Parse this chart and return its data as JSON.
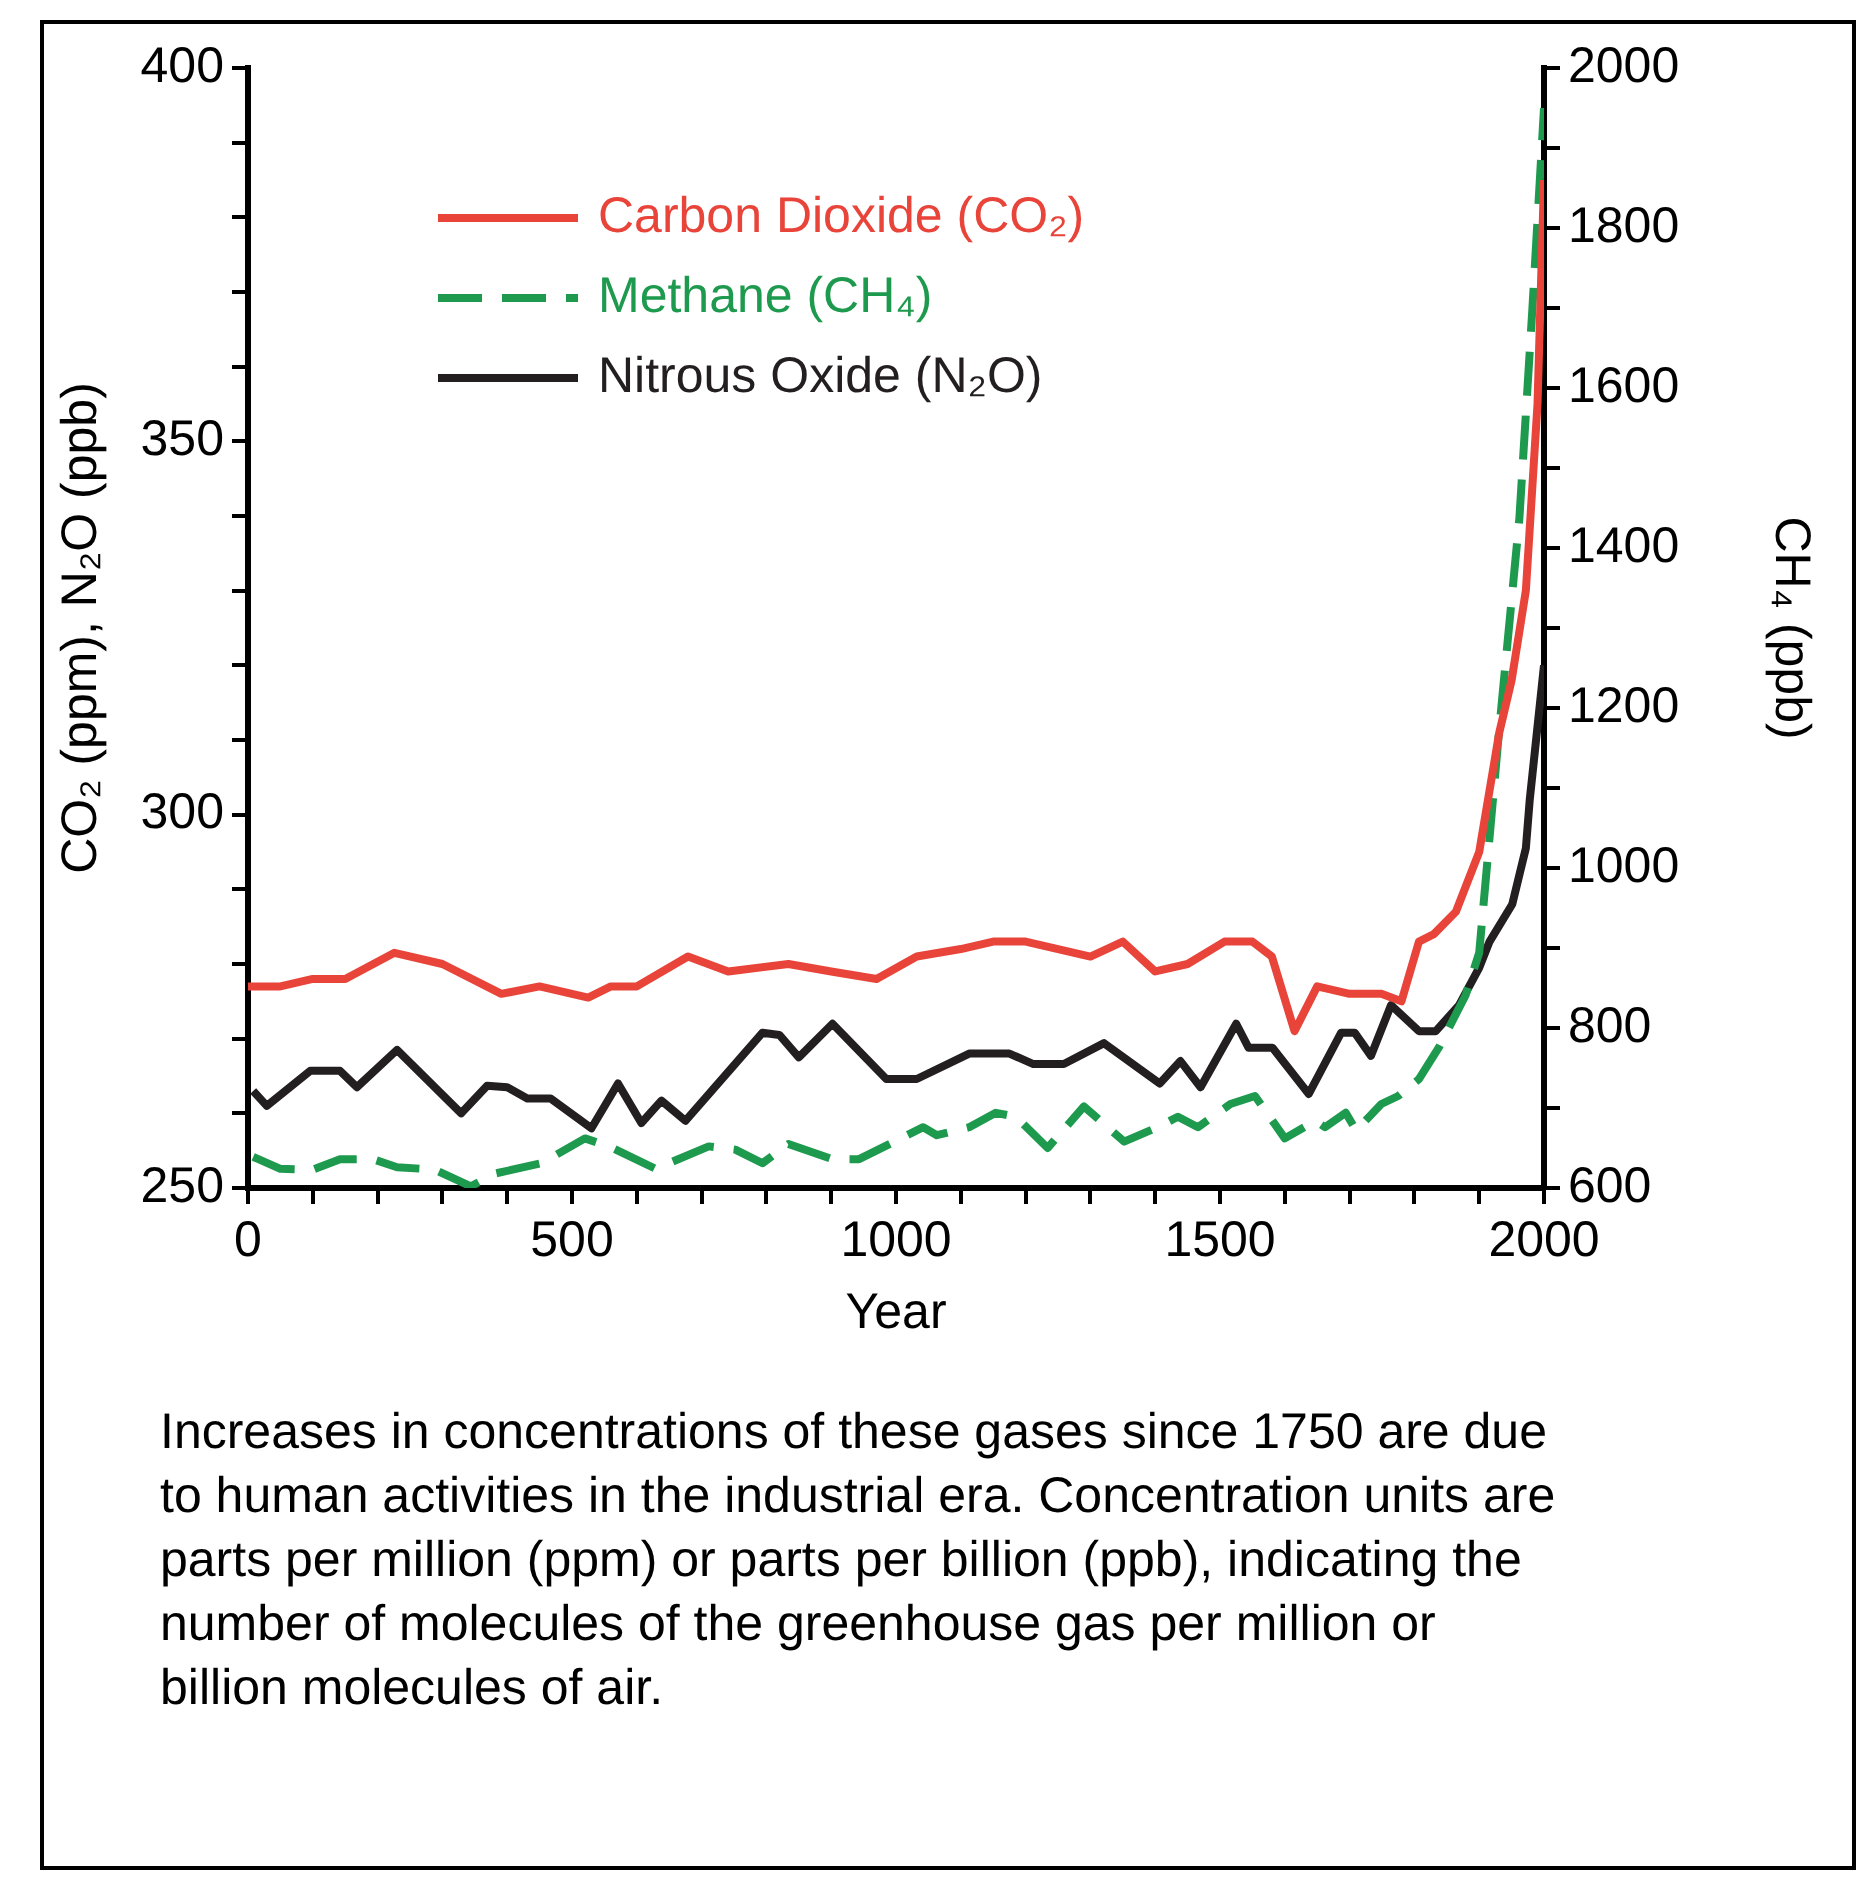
{
  "chart_data": {
    "type": "line",
    "xlabel": "Year",
    "ylabel": "CO₂ (ppm), N₂O (ppb)",
    "y2label": "CH₄ (ppb)",
    "xlim": [
      0,
      2000
    ],
    "xticks": [
      0,
      {
        "value": 100,
        "label": null
      },
      {
        "value": 200,
        "label": null
      },
      {
        "value": 300,
        "label": null
      },
      {
        "value": 400,
        "label": null
      },
      500,
      {
        "value": 600,
        "label": null
      },
      {
        "value": 700,
        "label": null
      },
      {
        "value": 800,
        "label": null
      },
      {
        "value": 900,
        "label": null
      },
      1000,
      {
        "value": 1100,
        "label": null
      },
      {
        "value": 1200,
        "label": null
      },
      {
        "value": 1300,
        "label": null
      },
      {
        "value": 1400,
        "label": null
      },
      1500,
      {
        "value": 1600,
        "label": null
      },
      {
        "value": 1700,
        "label": null
      },
      {
        "value": 1800,
        "label": null
      },
      {
        "value": 1900,
        "label": null
      },
      2000
    ],
    "ylim": [
      250,
      400
    ],
    "yticks": [
      250,
      {
        "value": 260,
        "label": null
      },
      {
        "value": 270,
        "label": null
      },
      {
        "value": 280,
        "label": null
      },
      {
        "value": 290,
        "label": null
      },
      300,
      {
        "value": 310,
        "label": null
      },
      {
        "value": 320,
        "label": null
      },
      {
        "value": 330,
        "label": null
      },
      {
        "value": 340,
        "label": null
      },
      350,
      {
        "value": 360,
        "label": null
      },
      {
        "value": 370,
        "label": null
      },
      {
        "value": 380,
        "label": null
      },
      {
        "value": 390,
        "label": null
      },
      400
    ],
    "y2lim": [
      600,
      2000
    ],
    "y2ticks": [
      600,
      {
        "value": 700,
        "label": null
      },
      800,
      {
        "value": 900,
        "label": null
      },
      1000,
      {
        "value": 1100,
        "label": null
      },
      1200,
      {
        "value": 1300,
        "label": null
      },
      1400,
      {
        "value": 1500,
        "label": null
      },
      1600,
      {
        "value": 1700,
        "label": null
      },
      1800,
      {
        "value": 1900,
        "label": null
      },
      2000
    ],
    "grid": false,
    "legend": "top left",
    "marker": "none",
    "series": [
      {
        "name": "Carbon Dioxide (CO₂)",
        "color": "#e8443a",
        "line_style": "solid",
        "x": [
          0,
          50,
          100,
          150,
          226,
          300,
          391,
          450,
          525,
          560,
          600,
          679,
          741,
          834,
          900,
          970,
          1032,
          1100,
          1150,
          1200,
          1250,
          1300,
          1350,
          1400,
          1450,
          1507,
          1550,
          1580,
          1615,
          1650,
          1700,
          1749,
          1780,
          1807,
          1830,
          1864,
          1900,
          1931,
          1950,
          1972,
          1990,
          2000
        ],
        "values": [
          277,
          277,
          278,
          278,
          281.5,
          280,
          276,
          277,
          275.5,
          277,
          277,
          281,
          279,
          280,
          279,
          278,
          281,
          282,
          283,
          283,
          282,
          281,
          283,
          279,
          280,
          283,
          283,
          281,
          271,
          277,
          276,
          276,
          275,
          283,
          284,
          287,
          295,
          311,
          318,
          330,
          355,
          385
        ]
      },
      {
        "name": "Methane (CH₄)",
        "color": "#1e9a4e",
        "line_style": "dashed",
        "axis": "y2",
        "x": [
          8,
          50,
          100,
          142,
          193,
          230,
          288,
          344,
          381,
          453,
          520,
          557,
          629,
          711,
          752,
          794,
          834,
          902,
          943,
          1042,
          1063,
          1113,
          1154,
          1185,
          1234,
          1290,
          1352,
          1404,
          1435,
          1466,
          1516,
          1554,
          1600,
          1647,
          1662,
          1694,
          1710,
          1749,
          1775,
          1807,
          1838,
          1879,
          1900,
          1931,
          1962,
          1982,
          2000
        ],
        "values": [
          639,
          624,
          623,
          636,
          636,
          626,
          623,
          602,
          618,
          631,
          662,
          652,
          624,
          652,
          648,
          631,
          655,
          636,
          636,
          676,
          666,
          676,
          694,
          689,
          650,
          702,
          658,
          676,
          689,
          676,
          705,
          715,
          662,
          684,
          676,
          694,
          672,
          705,
          715,
          736,
          776,
          841,
          894,
          1174,
          1437,
          1698,
          1950
        ]
      },
      {
        "name": "Nitrous Oxide (N₂O)",
        "color": "#231f20",
        "line_style": "solid",
        "x": [
          8,
          29,
          96,
          142,
          168,
          230,
          329,
          369,
          400,
          431,
          467,
          530,
          571,
          607,
          638,
          675,
          794,
          820,
          850,
          902,
          985,
          1032,
          1113,
          1175,
          1212,
          1259,
          1321,
          1407,
          1439,
          1470,
          1525,
          1544,
          1581,
          1637,
          1687,
          1708,
          1733,
          1764,
          1807,
          1833,
          1869,
          1900,
          1916,
          1951,
          1972,
          1978,
          2000
        ],
        "values": [
          263,
          261,
          265.7,
          265.7,
          263.5,
          268.5,
          260,
          263.7,
          263.5,
          262,
          262,
          258,
          264,
          258.7,
          261.7,
          259,
          270.8,
          270.5,
          267.5,
          272,
          264.6,
          264.6,
          268,
          268,
          266.6,
          266.6,
          269.4,
          264,
          267,
          263.5,
          272,
          268.8,
          268.8,
          262.6,
          270.8,
          270.8,
          267.7,
          274.5,
          271,
          271,
          274.5,
          279.5,
          283,
          288,
          295.5,
          302,
          320
        ]
      }
    ],
    "annotations": [
      "Increases in concentrations of these gases since 1750 are due to human activities in the industrial era. Concentration units are parts per million (ppm) or parts per billion (ppb), indicating the number of molecules of the greenhouse gas per million or billion molecules of air."
    ]
  }
}
